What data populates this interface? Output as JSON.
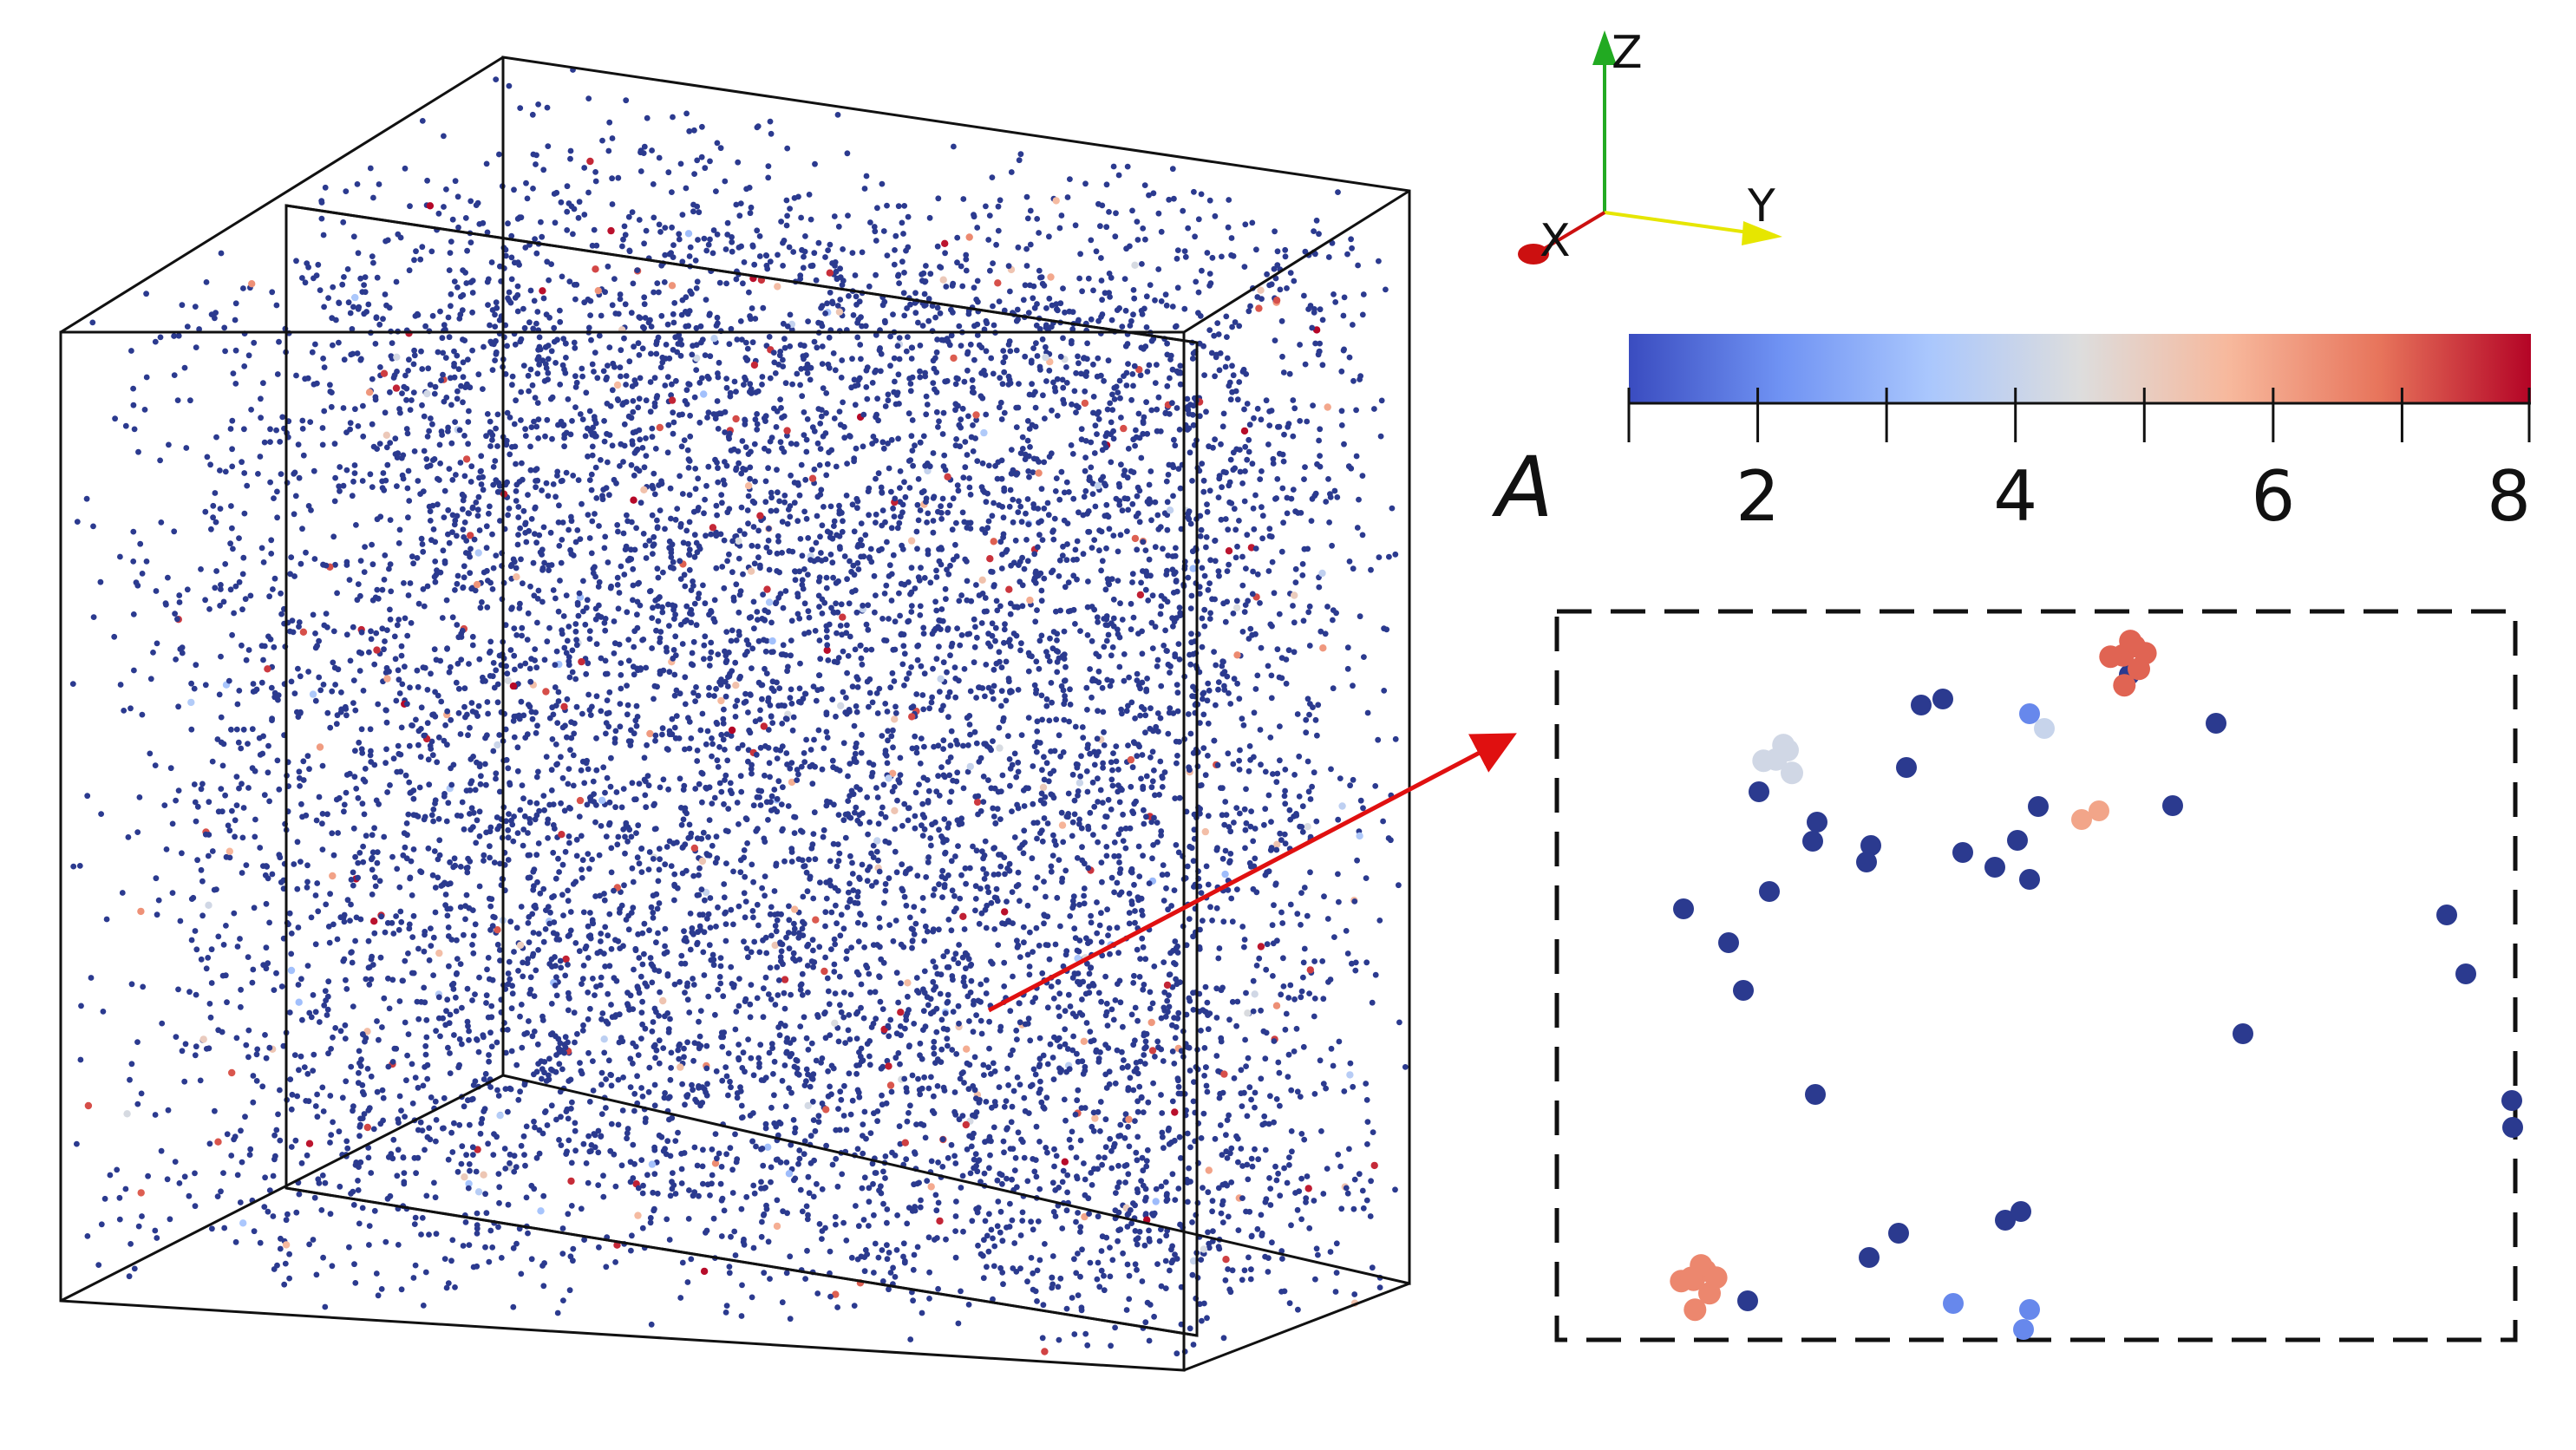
{
  "axes_triad": {
    "x_label": "X",
    "y_label": "Y",
    "z_label": "Z",
    "x_color": "#cc1010",
    "y_color": "#e6e600",
    "z_color": "#22aa22"
  },
  "colorbar": {
    "title": "A",
    "min": 1,
    "max": 8,
    "tick_labels": [
      "2",
      "4",
      "6",
      "8"
    ],
    "tick_values": [
      2,
      4,
      6,
      8
    ],
    "minor_tick_values": [
      1,
      3,
      5,
      7
    ],
    "colormap": "coolwarm",
    "colormap_stops": [
      "#3a4cc0",
      "#6f92f3",
      "#aac7fd",
      "#dddddd",
      "#f7b89c",
      "#e7745b",
      "#b40426"
    ]
  },
  "colors": {
    "particle_main": "#2b3a8f",
    "outline": "#111111",
    "arrow": "#e01010",
    "background": "#ffffff"
  },
  "inset": {
    "border_style": "dashed",
    "particles": [
      {
        "a": 1
      },
      {
        "a": 1
      },
      {
        "a": 1
      },
      {
        "a": 1
      },
      {
        "a": 1
      },
      {
        "a": 1
      },
      {
        "a": 1
      },
      {
        "a": 1
      },
      {
        "a": 1
      },
      {
        "a": 1
      },
      {
        "a": 1
      },
      {
        "a": 1
      },
      {
        "a": 1
      },
      {
        "a": 1
      },
      {
        "a": 1
      },
      {
        "a": 1
      },
      {
        "a": 1
      },
      {
        "a": 1
      },
      {
        "a": 1
      },
      {
        "a": 1
      },
      {
        "a": 1
      },
      {
        "a": 1
      },
      {
        "a": 1
      },
      {
        "a": 1
      },
      {
        "a": 1
      },
      {
        "a": 1
      },
      {
        "a": 1
      },
      {
        "a": 1
      },
      {
        "a": 1
      },
      {
        "a": 1
      },
      {
        "a": 1
      },
      {
        "a": 2
      },
      {
        "a": 2
      },
      {
        "a": 2
      },
      {
        "a": 2
      },
      {
        "a": 4
      },
      {
        "a": 6
      },
      {
        "a": 6
      }
    ]
  }
}
